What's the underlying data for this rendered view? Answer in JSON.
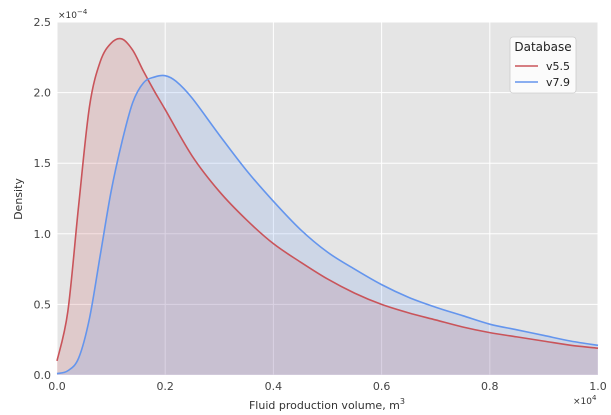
{
  "chart_data": {
    "type": "area",
    "xlabel": "Fluid production volume, m",
    "xlabel_superscript": "3",
    "ylabel": "Density",
    "x_multiplier": "×10",
    "x_multiplier_exp": "4",
    "y_multiplier": "×10",
    "y_multiplier_exp": "−4",
    "xlim": [
      0,
      1.0
    ],
    "ylim": [
      0,
      2.5
    ],
    "x_ticks": [
      0.0,
      0.2,
      0.4,
      0.6,
      0.8,
      1.0
    ],
    "x_tick_labels": [
      "0.0",
      "0.2",
      "0.4",
      "0.6",
      "0.8",
      "1.0"
    ],
    "y_ticks": [
      0.0,
      0.5,
      1.0,
      1.5,
      2.0,
      2.5
    ],
    "y_tick_labels": [
      "0.0",
      "0.5",
      "1.0",
      "1.5",
      "2.0",
      "2.5"
    ],
    "grid": true,
    "legend": {
      "title": "Database",
      "placement": "top-right"
    },
    "series": [
      {
        "name": "v5.5",
        "color": "#c9545a",
        "x": [
          0.0,
          0.02,
          0.04,
          0.06,
          0.08,
          0.1,
          0.12,
          0.14,
          0.16,
          0.18,
          0.2,
          0.25,
          0.3,
          0.35,
          0.4,
          0.45,
          0.5,
          0.55,
          0.6,
          0.65,
          0.7,
          0.75,
          0.8,
          0.85,
          0.9,
          0.95,
          1.0
        ],
        "y": [
          0.1,
          0.45,
          1.2,
          1.9,
          2.22,
          2.35,
          2.38,
          2.3,
          2.15,
          2.01,
          1.88,
          1.55,
          1.3,
          1.1,
          0.93,
          0.8,
          0.68,
          0.58,
          0.5,
          0.44,
          0.39,
          0.34,
          0.3,
          0.27,
          0.24,
          0.21,
          0.19
        ]
      },
      {
        "name": "v7.9",
        "color": "#6495ed",
        "x": [
          0.0,
          0.02,
          0.04,
          0.06,
          0.08,
          0.1,
          0.12,
          0.14,
          0.16,
          0.18,
          0.2,
          0.22,
          0.25,
          0.3,
          0.35,
          0.4,
          0.45,
          0.5,
          0.55,
          0.6,
          0.65,
          0.7,
          0.75,
          0.8,
          0.85,
          0.9,
          0.95,
          1.0
        ],
        "y": [
          0.01,
          0.03,
          0.12,
          0.4,
          0.85,
          1.3,
          1.65,
          1.93,
          2.07,
          2.11,
          2.12,
          2.08,
          1.96,
          1.7,
          1.45,
          1.23,
          1.03,
          0.87,
          0.75,
          0.64,
          0.55,
          0.48,
          0.42,
          0.36,
          0.32,
          0.28,
          0.24,
          0.21
        ]
      }
    ]
  }
}
